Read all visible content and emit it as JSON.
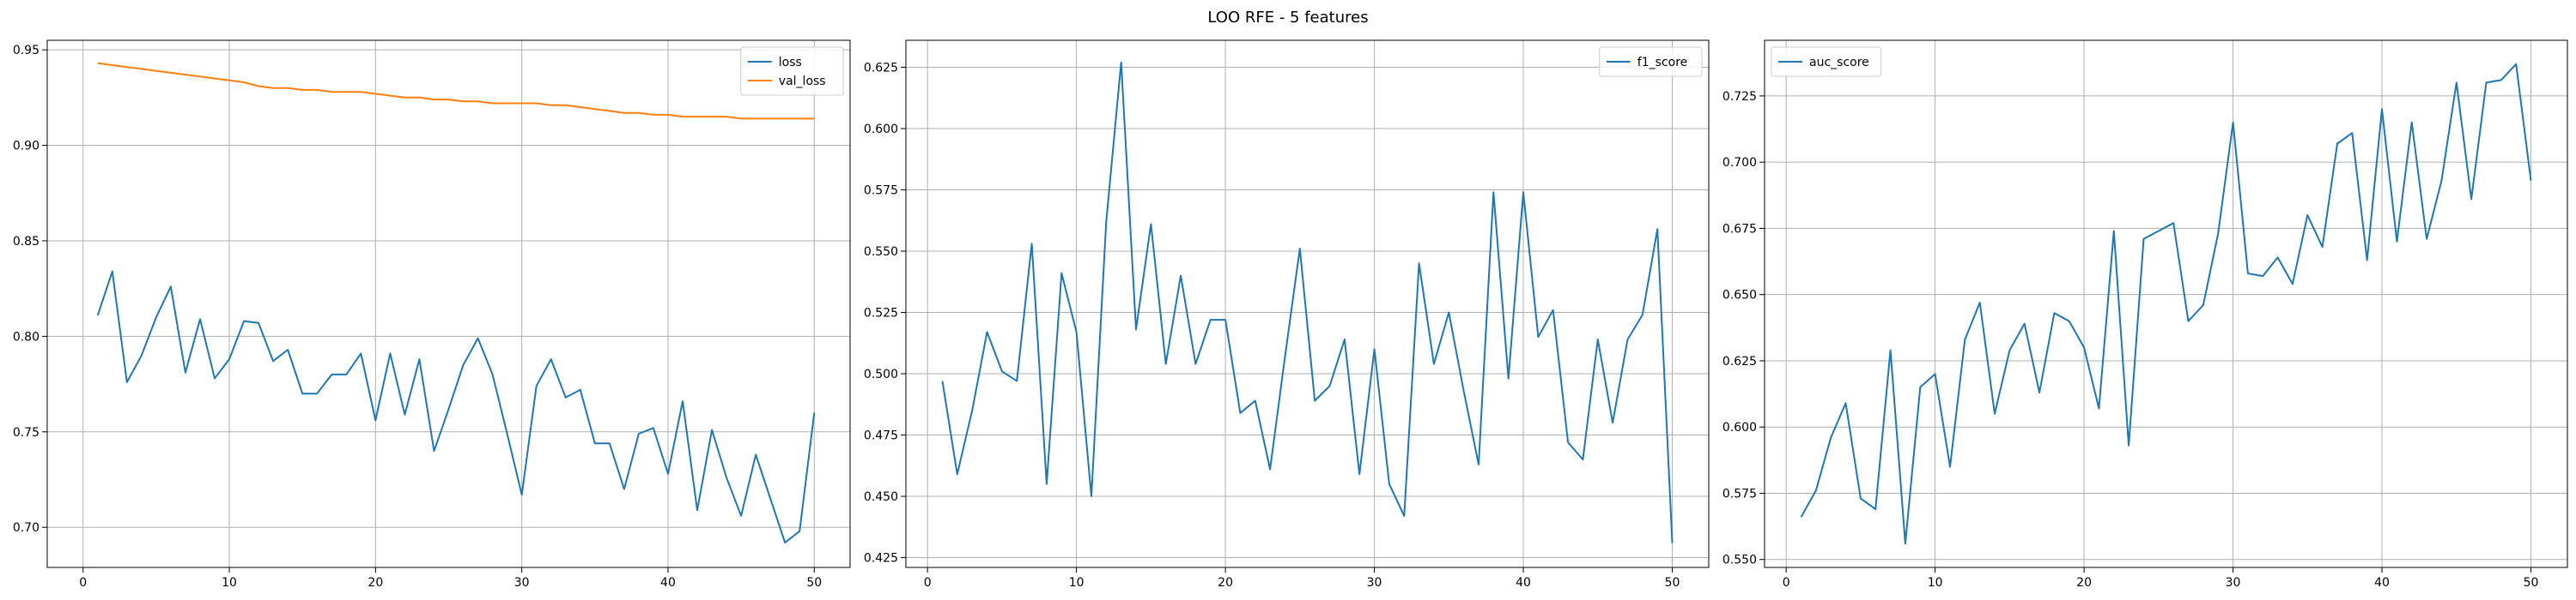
{
  "figure_title": "LOO RFE - 5 features",
  "colors": {
    "blue": "#1f77b4",
    "orange": "#ff7f0e",
    "grid": "#b0b0b0",
    "axis": "#000000"
  },
  "chart_data": [
    {
      "type": "line",
      "title": "",
      "xlabel": "",
      "ylabel": "",
      "grid": true,
      "legend_position": "top-right",
      "xlim": [
        -2.45,
        52.45
      ],
      "ylim": [
        0.679,
        0.955
      ],
      "x_ticks": [
        0,
        10,
        20,
        30,
        40,
        50
      ],
      "x_tick_labels": [
        "0",
        "10",
        "20",
        "30",
        "40",
        "50"
      ],
      "y_ticks": [
        0.7,
        0.75,
        0.8,
        0.85,
        0.9,
        0.95
      ],
      "y_tick_labels": [
        "0.70",
        "0.75",
        "0.80",
        "0.85",
        "0.90",
        "0.95"
      ],
      "x": [
        1,
        2,
        3,
        4,
        5,
        6,
        7,
        8,
        9,
        10,
        11,
        12,
        13,
        14,
        15,
        16,
        17,
        18,
        19,
        20,
        21,
        22,
        23,
        24,
        25,
        26,
        27,
        28,
        29,
        30,
        31,
        32,
        33,
        34,
        35,
        36,
        37,
        38,
        39,
        40,
        41,
        42,
        43,
        44,
        45,
        46,
        47,
        48,
        49,
        50
      ],
      "series": [
        {
          "name": "loss",
          "color": "#1f77b4",
          "values": [
            0.811,
            0.834,
            0.776,
            0.79,
            0.81,
            0.826,
            0.781,
            0.809,
            0.778,
            0.788,
            0.808,
            0.807,
            0.787,
            0.793,
            0.77,
            0.77,
            0.78,
            0.78,
            0.791,
            0.756,
            0.791,
            0.759,
            0.788,
            0.74,
            0.762,
            0.785,
            0.799,
            0.78,
            0.749,
            0.717,
            0.774,
            0.788,
            0.768,
            0.772,
            0.744,
            0.744,
            0.72,
            0.749,
            0.752,
            0.728,
            0.766,
            0.709,
            0.751,
            0.726,
            0.706,
            0.738,
            0.715,
            0.692,
            0.698,
            0.76
          ]
        },
        {
          "name": "val_loss",
          "color": "#ff7f0e",
          "values": [
            0.943,
            0.942,
            0.941,
            0.94,
            0.939,
            0.938,
            0.937,
            0.936,
            0.935,
            0.934,
            0.933,
            0.931,
            0.93,
            0.93,
            0.929,
            0.929,
            0.928,
            0.928,
            0.928,
            0.927,
            0.926,
            0.925,
            0.925,
            0.924,
            0.924,
            0.923,
            0.923,
            0.922,
            0.922,
            0.922,
            0.922,
            0.921,
            0.921,
            0.92,
            0.919,
            0.918,
            0.917,
            0.917,
            0.916,
            0.916,
            0.915,
            0.915,
            0.915,
            0.915,
            0.914,
            0.914,
            0.914,
            0.914,
            0.914,
            0.914
          ]
        }
      ]
    },
    {
      "type": "line",
      "title": "",
      "xlabel": "",
      "ylabel": "",
      "grid": true,
      "legend_position": "top-right",
      "xlim": [
        -1.45,
        52.45
      ],
      "ylim": [
        0.421,
        0.636
      ],
      "x_ticks": [
        0,
        10,
        20,
        30,
        40,
        50
      ],
      "x_tick_labels": [
        "0",
        "10",
        "20",
        "30",
        "40",
        "50"
      ],
      "y_ticks": [
        0.425,
        0.45,
        0.475,
        0.5,
        0.525,
        0.55,
        0.575,
        0.6,
        0.625
      ],
      "y_tick_labels": [
        "0.425",
        "0.450",
        "0.475",
        "0.500",
        "0.525",
        "0.550",
        "0.575",
        "0.600",
        "0.625"
      ],
      "x": [
        1,
        2,
        3,
        4,
        5,
        6,
        7,
        8,
        9,
        10,
        11,
        12,
        13,
        14,
        15,
        16,
        17,
        18,
        19,
        20,
        21,
        22,
        23,
        24,
        25,
        26,
        27,
        28,
        29,
        30,
        31,
        32,
        33,
        34,
        35,
        36,
        37,
        38,
        39,
        40,
        41,
        42,
        43,
        44,
        45,
        46,
        47,
        48,
        49,
        50
      ],
      "series": [
        {
          "name": "f1_score",
          "color": "#1f77b4",
          "values": [
            0.497,
            0.459,
            0.485,
            0.517,
            0.501,
            0.497,
            0.553,
            0.455,
            0.541,
            0.517,
            0.45,
            0.562,
            0.627,
            0.518,
            0.561,
            0.504,
            0.54,
            0.504,
            0.522,
            0.522,
            0.484,
            0.489,
            0.461,
            0.507,
            0.551,
            0.489,
            0.495,
            0.514,
            0.459,
            0.51,
            0.455,
            0.442,
            0.545,
            0.504,
            0.525,
            0.493,
            0.463,
            0.574,
            0.498,
            0.574,
            0.515,
            0.526,
            0.472,
            0.465,
            0.514,
            0.48,
            0.514,
            0.524,
            0.559,
            0.431
          ]
        }
      ]
    },
    {
      "type": "line",
      "title": "",
      "xlabel": "",
      "ylabel": "",
      "grid": true,
      "legend_position": "top-left",
      "xlim": [
        -1.45,
        52.45
      ],
      "ylim": [
        0.547,
        0.746
      ],
      "x_ticks": [
        0,
        10,
        20,
        30,
        40,
        50
      ],
      "x_tick_labels": [
        "0",
        "10",
        "20",
        "30",
        "40",
        "50"
      ],
      "y_ticks": [
        0.55,
        0.575,
        0.6,
        0.625,
        0.65,
        0.675,
        0.7,
        0.725
      ],
      "y_tick_labels": [
        "0.550",
        "0.575",
        "0.600",
        "0.625",
        "0.650",
        "0.675",
        "0.700",
        "0.725"
      ],
      "x": [
        1,
        2,
        3,
        4,
        5,
        6,
        7,
        8,
        9,
        10,
        11,
        12,
        13,
        14,
        15,
        16,
        17,
        18,
        19,
        20,
        21,
        22,
        23,
        24,
        25,
        26,
        27,
        28,
        29,
        30,
        31,
        32,
        33,
        34,
        35,
        36,
        37,
        38,
        39,
        40,
        41,
        42,
        43,
        44,
        45,
        46,
        47,
        48,
        49,
        50
      ],
      "series": [
        {
          "name": "auc_score",
          "color": "#1f77b4",
          "values": [
            0.566,
            0.576,
            0.596,
            0.609,
            0.573,
            0.569,
            0.629,
            0.556,
            0.615,
            0.62,
            0.585,
            0.633,
            0.647,
            0.605,
            0.629,
            0.639,
            0.613,
            0.643,
            0.64,
            0.63,
            0.607,
            0.674,
            0.593,
            0.671,
            0.674,
            0.677,
            0.64,
            0.646,
            0.673,
            0.715,
            0.658,
            0.657,
            0.664,
            0.654,
            0.68,
            0.668,
            0.707,
            0.711,
            0.663,
            0.72,
            0.67,
            0.715,
            0.671,
            0.693,
            0.73,
            0.686,
            0.73,
            0.731,
            0.737,
            0.693
          ]
        }
      ]
    }
  ]
}
